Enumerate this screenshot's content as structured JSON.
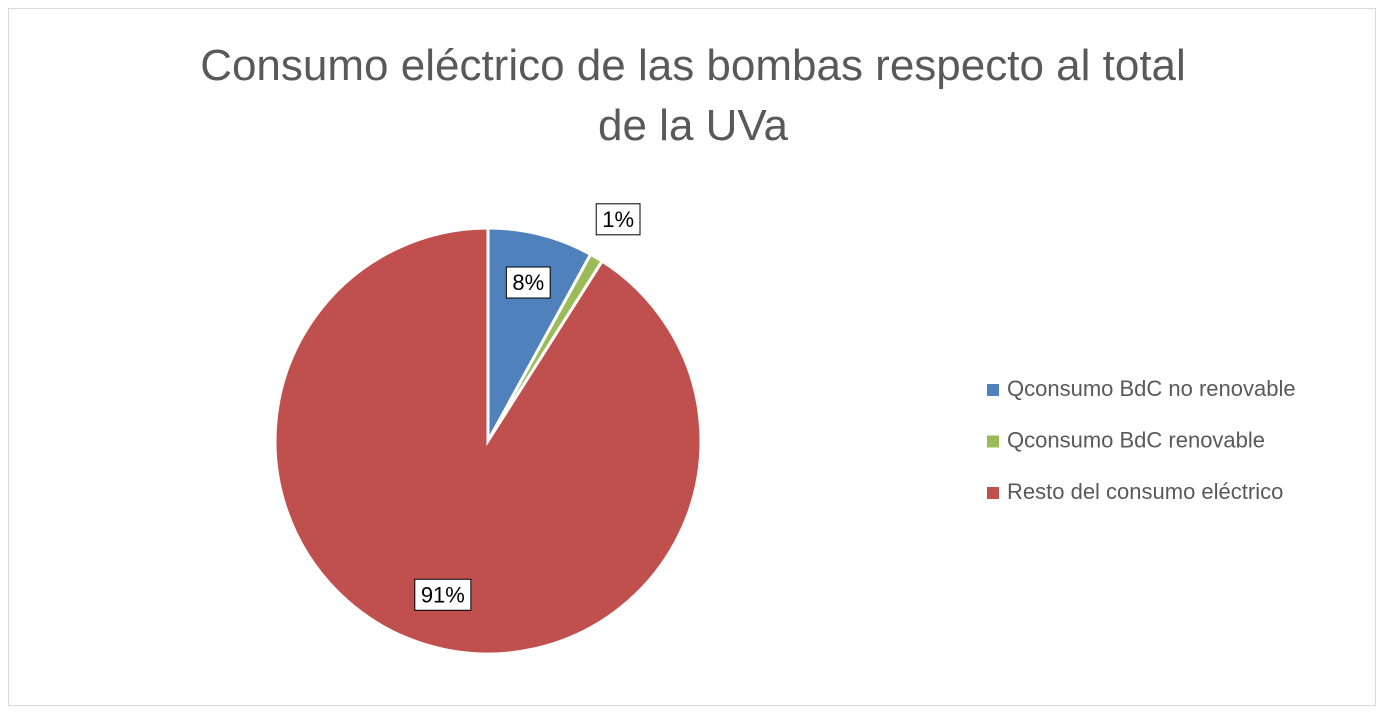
{
  "chart_data": {
    "type": "pie",
    "title": "Consumo eléctrico de las bombas respecto al total de la UVa",
    "categories": [
      "Qconsumo BdC no renovable",
      "Qconsumo BdC renovable",
      "Resto del consumo eléctrico"
    ],
    "values": [
      8,
      1,
      91
    ],
    "value_labels": [
      "8%",
      "1%",
      "91%"
    ],
    "colors": [
      "#4f81bd",
      "#9bbb59",
      "#c0504d"
    ],
    "legend": "right"
  }
}
